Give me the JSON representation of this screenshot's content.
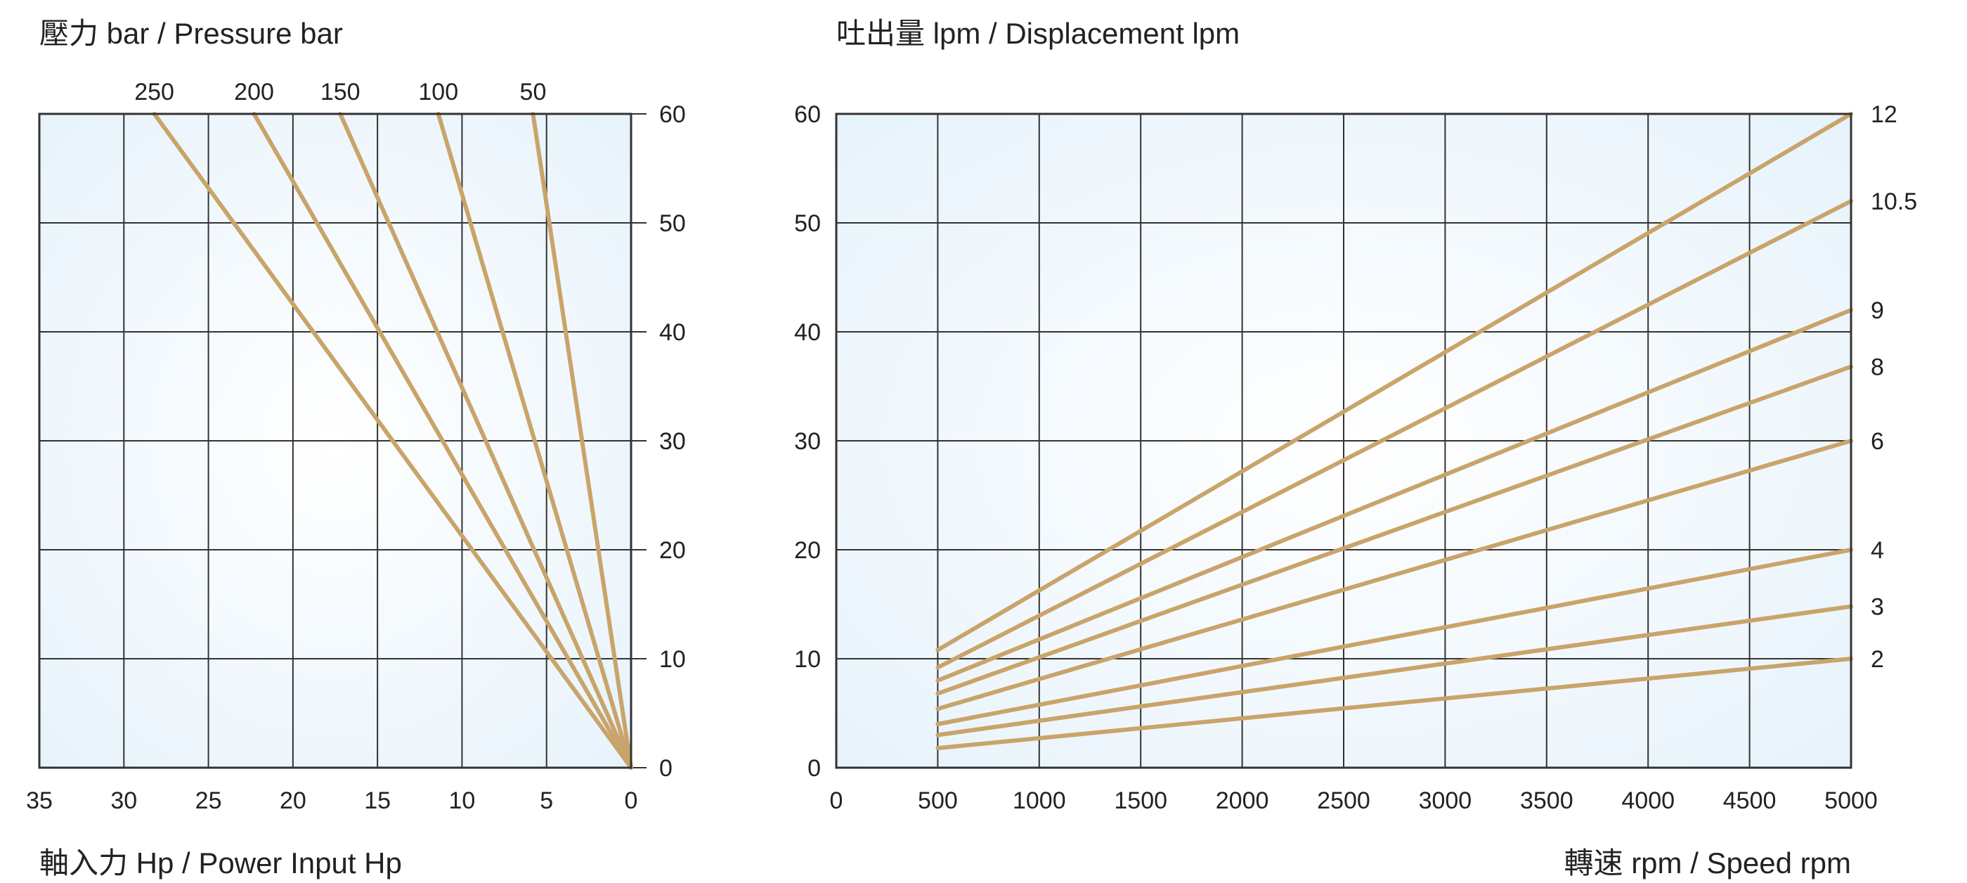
{
  "colors": {
    "curve": "#c9a46a",
    "grid": "#333333",
    "panel_center": "#ffffff",
    "panel_edge": "#e5f2fb"
  },
  "chart_data": [
    {
      "id": "power",
      "type": "line",
      "title": "壓力 bar / Pressure bar",
      "xlabel": "軸入力 Hp / Power Input Hp",
      "ylabel": "",
      "x_reversed": true,
      "xlim": [
        0,
        35
      ],
      "ylim": [
        0,
        60
      ],
      "x_ticks": [
        35,
        30,
        25,
        20,
        15,
        10,
        5,
        0
      ],
      "y_ticks": [
        60,
        50,
        40,
        30,
        20,
        10,
        0
      ],
      "y_axis_side": "right",
      "series_label_side": "top",
      "grid": true,
      "series": [
        {
          "name": "250",
          "points": [
            [
              0,
              0
            ],
            [
              28.2,
              60
            ]
          ]
        },
        {
          "name": "200",
          "points": [
            [
              0,
              0
            ],
            [
              22.3,
              60
            ]
          ]
        },
        {
          "name": "150",
          "points": [
            [
              0,
              0
            ],
            [
              17.2,
              60
            ]
          ]
        },
        {
          "name": "100",
          "points": [
            [
              0,
              0
            ],
            [
              11.4,
              60
            ]
          ]
        },
        {
          "name": "50",
          "points": [
            [
              0,
              0
            ],
            [
              5.8,
              60
            ]
          ]
        }
      ]
    },
    {
      "id": "displacement",
      "type": "line",
      "title": "吐出量 lpm / Displacement lpm",
      "xlabel": "轉速 rpm / Speed rpm",
      "ylabel": "",
      "x_reversed": false,
      "xlim": [
        0,
        5000
      ],
      "ylim": [
        0,
        60
      ],
      "x_ticks": [
        0,
        500,
        1000,
        1500,
        2000,
        2500,
        3000,
        3500,
        4000,
        4500,
        5000
      ],
      "y_ticks": [
        60,
        50,
        40,
        30,
        20,
        10,
        0
      ],
      "y_axis_side": "left",
      "series_label_side": "right",
      "grid": true,
      "series": [
        {
          "name": "12",
          "points": [
            [
              500,
              10.8
            ],
            [
              5000,
              60
            ]
          ]
        },
        {
          "name": "10.5",
          "points": [
            [
              500,
              9.2
            ],
            [
              5000,
              52
            ]
          ]
        },
        {
          "name": "9",
          "points": [
            [
              500,
              8.0
            ],
            [
              5000,
              42
            ]
          ]
        },
        {
          "name": "8",
          "points": [
            [
              500,
              6.8
            ],
            [
              5000,
              36.8
            ]
          ]
        },
        {
          "name": "6",
          "points": [
            [
              500,
              5.4
            ],
            [
              5000,
              30
            ]
          ]
        },
        {
          "name": "4",
          "points": [
            [
              500,
              4.0
            ],
            [
              5000,
              20
            ]
          ]
        },
        {
          "name": "3",
          "points": [
            [
              500,
              3.0
            ],
            [
              5000,
              14.8
            ]
          ]
        },
        {
          "name": "2",
          "points": [
            [
              500,
              1.8
            ],
            [
              5000,
              10
            ]
          ]
        }
      ]
    }
  ]
}
